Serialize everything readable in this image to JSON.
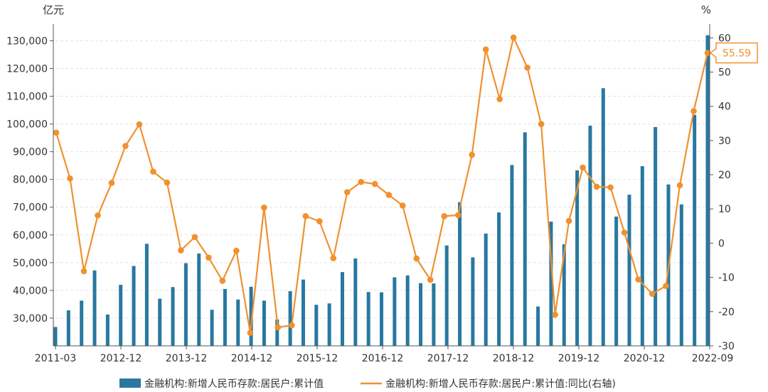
{
  "chart_data": {
    "type": "bar+line",
    "left_unit": "亿元",
    "right_unit": "%",
    "x_tick_labels": [
      "2011-03",
      "2012-12",
      "2013-12",
      "2014-12",
      "2015-12",
      "2016-12",
      "2017-12",
      "2018-12",
      "2019-12",
      "2020-12",
      "2022-09"
    ],
    "left_ticks": [
      "30,000",
      "40,000",
      "50,000",
      "60,000",
      "70,000",
      "80,000",
      "90,000",
      "100,000",
      "110,000",
      "120,000",
      "130,000"
    ],
    "right_ticks": [
      "60",
      "50",
      "40",
      "30",
      "20",
      "10",
      "0",
      "-10",
      "-20",
      "-30"
    ],
    "ylim_left": [
      20000,
      136000
    ],
    "ylim_right": [
      -30,
      64
    ],
    "bar_color": "#2878a0",
    "line_color": "#f0912e",
    "series": [
      {
        "name": "金融机构:新增人民币存款:居民户:累计值",
        "axis": "left",
        "kind": "bar",
        "values": [
          26800,
          32800,
          36300,
          47200,
          31300,
          42000,
          48800,
          56800,
          37000,
          41200,
          49800,
          53300,
          33000,
          40500,
          36700,
          41300,
          36300,
          29500,
          39700,
          43900,
          34800,
          35300,
          46600,
          51500,
          39400,
          39300,
          44700,
          45400,
          42600,
          42500,
          56200,
          71800,
          51900,
          60500,
          68100,
          85200,
          97000,
          34200,
          64800,
          56600,
          83300,
          99400,
          112900,
          66600,
          74500,
          84800,
          98900,
          78200,
          71000,
          103300,
          132000
        ]
      },
      {
        "name": "金融机构:新增人民币存款:居民户:累计值:同比(右轴)",
        "axis": "right",
        "kind": "line",
        "values": [
          32.3,
          18.9,
          -8.2,
          8.1,
          17.6,
          28.4,
          34.7,
          20.9,
          17.7,
          -2.1,
          1.8,
          -4.2,
          -11.0,
          -2.2,
          -26.2,
          10.4,
          -24.6,
          -24.0,
          7.9,
          6.4,
          -4.4,
          14.9,
          17.9,
          17.3,
          14.1,
          11.0,
          -4.5,
          -10.7,
          7.9,
          8.2,
          25.8,
          56.6,
          42.1,
          60.1,
          51.3,
          34.8,
          -20.9,
          6.5,
          22.1,
          16.5,
          16.3,
          3.1,
          -10.6,
          -14.8,
          -12.5,
          16.9,
          38.6,
          55.59
        ],
        "last_value_label": "55.59"
      }
    ],
    "legend_position": "bottom",
    "grid": true
  }
}
